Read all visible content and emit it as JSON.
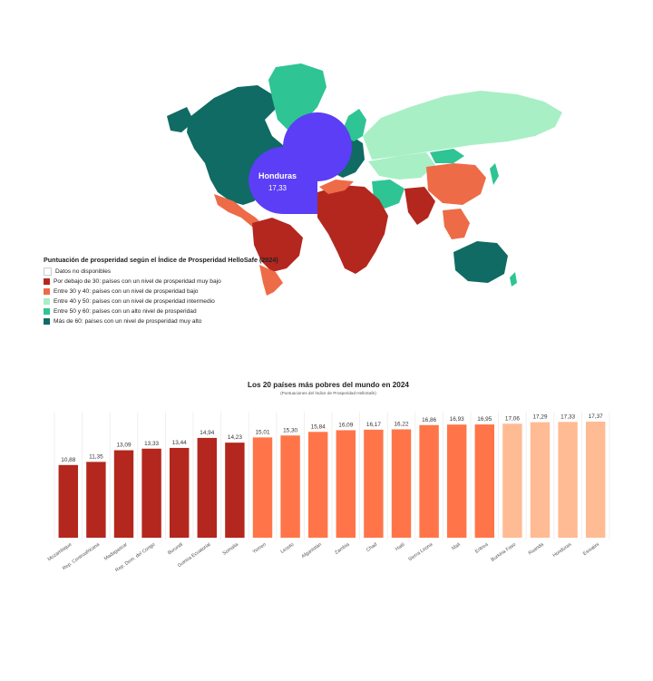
{
  "map": {
    "highlight": {
      "name": "Honduras",
      "value": "17,33",
      "color": "#5b3ef5"
    },
    "legend": {
      "title": "Puntuación de prosperidad según el Índice de Prosperidad HelloSafe (2024)",
      "items": [
        {
          "label": "Datos no disponibles",
          "color": "#ffffff"
        },
        {
          "label": "Por debajo de 30: países con un nivel de prosperidad muy bajo",
          "color": "#b3271e"
        },
        {
          "label": "Entre 30 y 40: países con un nivel de prosperidad bajo",
          "color": "#ee6b47"
        },
        {
          "label": "Entre 40 y 50: países con un nivel de prosperidad intermedio",
          "color": "#a8efc6"
        },
        {
          "label": "Entre 50 y 60: países con un alto nivel de prosperidad",
          "color": "#2ec493"
        },
        {
          "label": "Más de 60: países con un nivel de prosperidad muy alto",
          "color": "#0f6b63"
        }
      ]
    }
  },
  "chart_data": {
    "type": "bar",
    "title": "Los 20 países más pobres del mundo en 2024",
    "subtitle": "(Puntuaciones del Índice de Prosperidad HelloSafe)",
    "xlabel": "",
    "ylabel": "",
    "ylim": [
      0,
      17.37
    ],
    "grid": true,
    "categories": [
      "Mozambique",
      "Rep. Centroafricana",
      "Madagascar",
      "Rep. Dem. del Congo",
      "Burundi",
      "Guinea Ecuatorial",
      "Somalia",
      "Yemen",
      "Lesoto",
      "Afganistán",
      "Zambia",
      "Chad",
      "Haití",
      "Sierra Leona",
      "Mali",
      "Eritrea",
      "Burkina Faso",
      "Ruanda",
      "Honduras",
      "Eswatini"
    ],
    "values": [
      10.88,
      11.35,
      13.09,
      13.33,
      13.44,
      14.94,
      14.23,
      15.01,
      15.3,
      15.84,
      16.09,
      16.17,
      16.22,
      16.86,
      16.93,
      16.95,
      17.06,
      17.29,
      17.33,
      17.37
    ],
    "value_labels": [
      "10,88",
      "11,35",
      "13,09",
      "13,33",
      "13,44",
      "14,94",
      "14,23",
      "15,01",
      "15,30",
      "15,84",
      "16,09",
      "16,17",
      "16,22",
      "16,86",
      "16,93",
      "16,95",
      "17,06",
      "17,29",
      "17,33",
      "17,37"
    ],
    "colors": [
      "#b3271e",
      "#b3271e",
      "#b3271e",
      "#b3271e",
      "#b3271e",
      "#b3271e",
      "#b3271e",
      "#ff7549",
      "#ff7549",
      "#ff7549",
      "#ff7549",
      "#ff7549",
      "#ff7549",
      "#ff7549",
      "#ff7549",
      "#ff7549",
      "#ffbb94",
      "#ffbb94",
      "#ffbb94",
      "#ffbb94"
    ]
  }
}
